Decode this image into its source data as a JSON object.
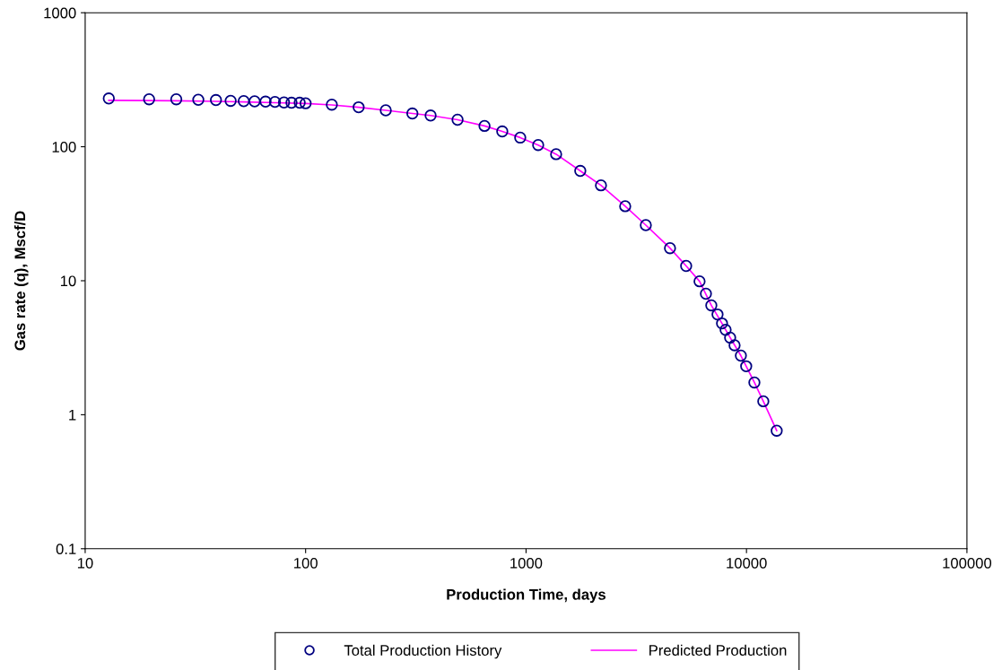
{
  "chart_data": {
    "type": "scatter",
    "xlabel": "Production Time, days",
    "ylabel": "Gas rate (q), Mscf/D",
    "log": "xy",
    "xlim": [
      10,
      100000
    ],
    "ylim": [
      0.1,
      1000
    ],
    "xticks": [
      10,
      100,
      1000,
      10000,
      100000
    ],
    "yticks": [
      0.1,
      1,
      10,
      100,
      1000
    ],
    "grid": false,
    "legend": "bottom",
    "series": [
      {
        "name": "Total Production History",
        "marker": "circle",
        "color": "#000080",
        "x": [
          12.8,
          19.5,
          25.9,
          32.6,
          39.2,
          45.7,
          52.4,
          58.7,
          65.8,
          72.6,
          79.8,
          86.3,
          94,
          100,
          131.5,
          174,
          231,
          305,
          369,
          489,
          648,
          780,
          941,
          1135,
          1369,
          1762,
          2187,
          2817,
          3494,
          4498,
          5325,
          6124,
          6546,
          6925,
          7390,
          7745,
          8040,
          8430,
          8830,
          9430,
          9970,
          10860,
          11920,
          13710
        ],
        "values": [
          229,
          226,
          226,
          224,
          223,
          220,
          219,
          218,
          217,
          216,
          214,
          213,
          213,
          211,
          206,
          197,
          187,
          177,
          171,
          159,
          143,
          130,
          117,
          103,
          88,
          66,
          51.5,
          36,
          26,
          17.5,
          12.9,
          9.9,
          8.0,
          6.55,
          5.6,
          4.8,
          4.3,
          3.76,
          3.3,
          2.76,
          2.3,
          1.74,
          1.26,
          0.76
        ]
      },
      {
        "name": "Predicted Production",
        "type": "line",
        "marker": "none",
        "line_style": "solid",
        "color": "#ff00ff",
        "x": [
          12.8,
          19.5,
          25.9,
          39.2,
          52.4,
          72.6,
          100,
          131.5,
          174,
          231,
          305,
          369,
          489,
          648,
          780,
          941,
          1135,
          1369,
          1762,
          2187,
          2817,
          3494,
          4498,
          5325,
          6124,
          6925,
          7745,
          8430,
          9430,
          10860,
          11920,
          13710
        ],
        "values": [
          222,
          221,
          220,
          218,
          216,
          213,
          210,
          205,
          197,
          187,
          177,
          171,
          159,
          143,
          130,
          117,
          103,
          88,
          66,
          51.5,
          36,
          26,
          17.5,
          12.9,
          9.9,
          6.55,
          4.8,
          3.76,
          2.76,
          1.74,
          1.26,
          0.76
        ]
      }
    ]
  }
}
